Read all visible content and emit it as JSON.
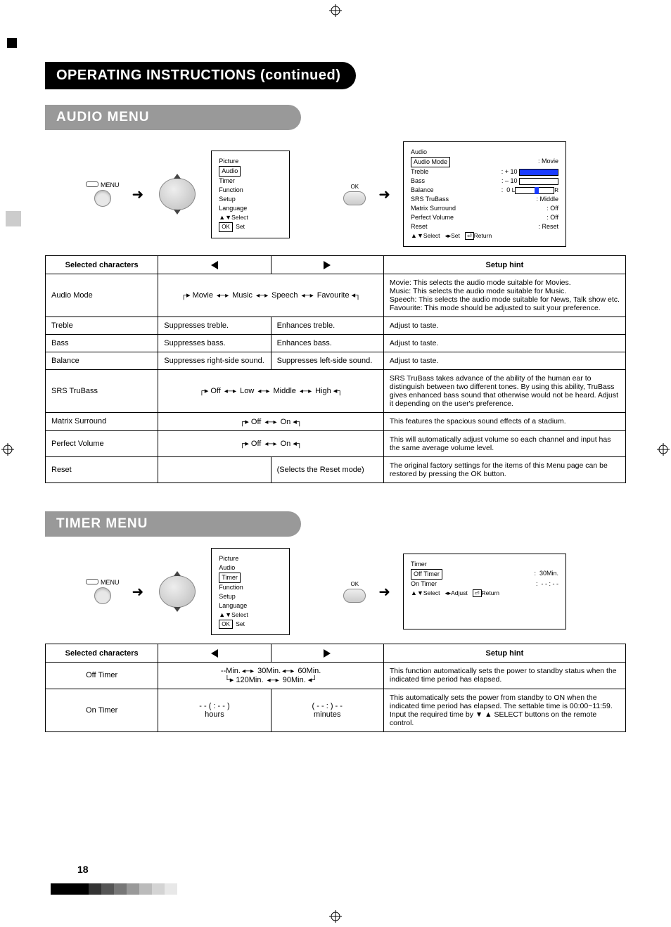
{
  "page_number": "18",
  "heading_main": "OPERATING INSTRUCTIONS (continued)",
  "heading_audio": "AUDIO MENU",
  "heading_timer": "TIMER MENU",
  "remote": {
    "menu_label": "MENU",
    "ok_label": "OK"
  },
  "osd_main": {
    "items": [
      "Picture",
      "Audio",
      "Timer",
      "Function",
      "Setup",
      "Language"
    ],
    "selected": "Audio",
    "footer_select": "Select",
    "footer_set": "Set",
    "footer_ok": "OK"
  },
  "osd_timer_main": {
    "items": [
      "Picture",
      "Audio",
      "Timer",
      "Function",
      "Setup",
      "Language"
    ],
    "selected": "Timer",
    "footer_select": "Select",
    "footer_set": "Set",
    "footer_ok": "OK"
  },
  "osd_audio_detail": {
    "title": "Audio",
    "rows": [
      {
        "k": "Audio Mode",
        "v": "Movie",
        "selected": true
      },
      {
        "k": "Treble",
        "v": "+ 10",
        "slider": true,
        "fill": 100
      },
      {
        "k": "Bass",
        "v": "– 10",
        "slider": true,
        "fill": 0
      },
      {
        "k": "Balance",
        "v": "0",
        "balance": true
      },
      {
        "k": "SRS TruBass",
        "v": "Middle"
      },
      {
        "k": "Matrix Surround",
        "v": "Off"
      },
      {
        "k": "Perfect Volume",
        "v": "Off"
      },
      {
        "k": "Reset",
        "v": "Reset"
      }
    ],
    "footer_select": "Select",
    "footer_set": "Set",
    "footer_return": "Return",
    "lr": "L",
    "lr2": "R"
  },
  "osd_timer_detail": {
    "title": "Timer",
    "rows": [
      {
        "k": "Off Timer",
        "v": "30Min.",
        "selected": true
      },
      {
        "k": "On Timer",
        "v": "- - : - -"
      }
    ],
    "footer_select": "Select",
    "footer_adjust": "Adjust",
    "footer_return": "Return"
  },
  "audio_table": {
    "head": {
      "c1": "Selected characters",
      "c4": "Setup hint"
    },
    "rows": [
      {
        "label": "Audio Mode",
        "cycle": [
          "Movie",
          "Music",
          "Speech",
          "Favourite"
        ],
        "span": true,
        "hint": "Movie: This selects the audio mode suitable for Movies.\nMusic: This selects the audio mode suitable for Music.\nSpeech: This selects the audio mode suitable for News, Talk show etc.\nFavourite: This mode should be adjusted to suit your preference."
      },
      {
        "label": "Treble",
        "left": "Suppresses treble.",
        "right": "Enhances treble.",
        "hint": "Adjust to taste."
      },
      {
        "label": "Bass",
        "left": "Suppresses bass.",
        "right": "Enhances bass.",
        "hint": "Adjust to taste."
      },
      {
        "label": "Balance",
        "left": "Suppresses right-side sound.",
        "right": "Suppresses left-side sound.",
        "hint": "Adjust to taste."
      },
      {
        "label": "SRS TruBass",
        "cycle": [
          "Off",
          "Low",
          "Middle",
          "High"
        ],
        "span": true,
        "hint": "SRS TruBass takes advance of the ability of the human ear to distinguish between two different tones. By using this ability, TruBass gives enhanced bass sound that otherwise would not be heard. Adjust it depending on the user's preference."
      },
      {
        "label": "Matrix Surround",
        "cycle": [
          "Off",
          "On"
        ],
        "span": true,
        "hint": "This features the spacious sound effects of a stadium."
      },
      {
        "label": "Perfect Volume",
        "cycle": [
          "Off",
          "On"
        ],
        "span": true,
        "hint": "This will automatically adjust volume so each channel and input has the same average volume level."
      },
      {
        "label": "Reset",
        "left": "",
        "right": "(Selects the Reset mode)",
        "hint": "The original factory settings for the items of this Menu page can be restored by pressing the OK button."
      }
    ]
  },
  "timer_table": {
    "head": {
      "c1": "Selected characters",
      "c4": "Setup hint"
    },
    "rows": [
      {
        "label": "Off Timer",
        "cycle_multi": true,
        "span": true,
        "line1": [
          "--Min.",
          "30Min.",
          "60Min."
        ],
        "line2": [
          "120Min.",
          "90Min."
        ],
        "hint": "This function automatically sets the power to standby status when the indicated time period has elapsed."
      },
      {
        "label": "On Timer",
        "left": "- - ( : - - )\nhours",
        "right": "( - -  : ) - -\nminutes",
        "hint": "This automatically sets the power from standby to ON when the indicated time period has elapsed. The settable time is 00:00~11:59. Input the required time by ▼ ▲ SELECT buttons on the remote control."
      }
    ]
  },
  "footer_shades": [
    "#000000",
    "#000000",
    "#000000",
    "#333333",
    "#555555",
    "#777777",
    "#999999",
    "#bbbbbb",
    "#d4d4d4",
    "#e8e8e8"
  ],
  "colors": {
    "accent": "#1a3cff",
    "gray_heading": "#999999"
  }
}
